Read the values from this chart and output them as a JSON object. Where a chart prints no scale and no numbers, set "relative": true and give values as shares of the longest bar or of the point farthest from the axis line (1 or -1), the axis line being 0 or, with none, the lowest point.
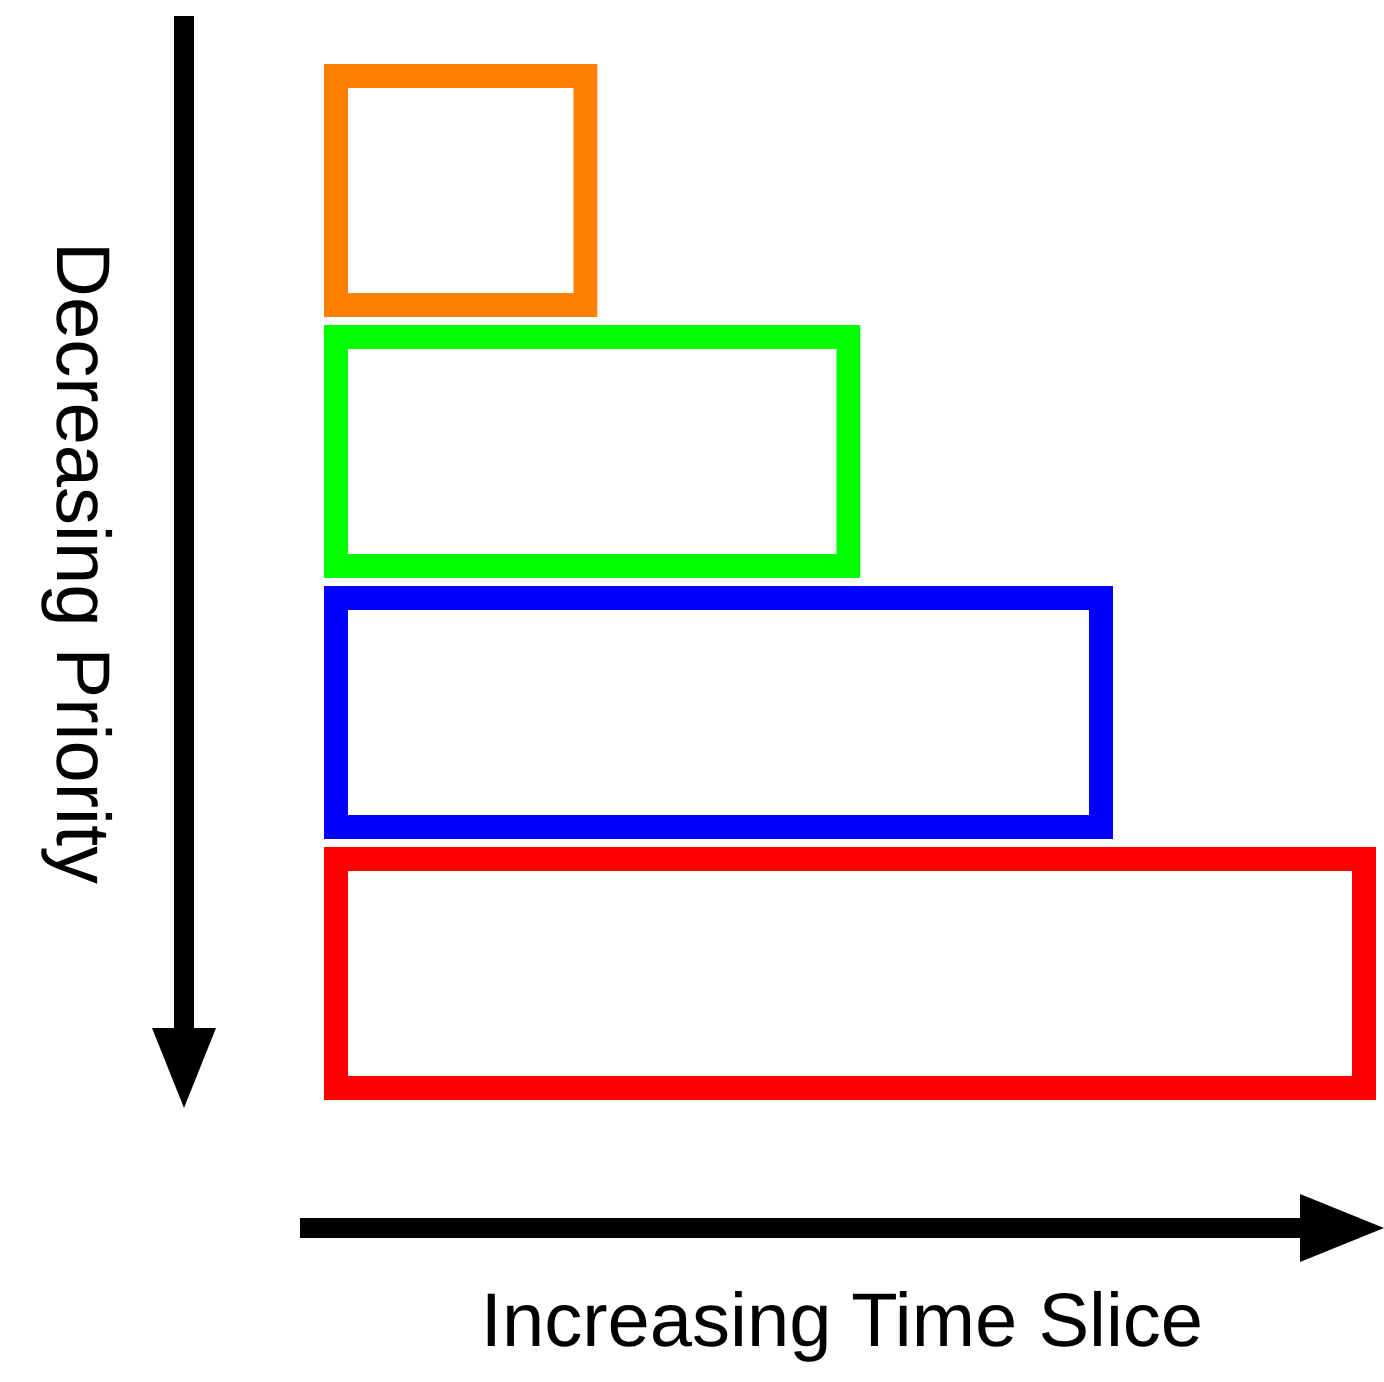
{
  "chart_data": {
    "type": "bar",
    "orientation": "horizontal",
    "relative": true,
    "xlabel": "Increasing Time Slice",
    "ylabel": "Decreasing Priority",
    "categories": [
      null,
      null,
      null,
      null
    ],
    "values": [
      0.26,
      0.51,
      0.75,
      1
    ],
    "colors": [
      "#ff8000",
      "#00ff00",
      "#0000ff",
      "#ff0000"
    ]
  }
}
